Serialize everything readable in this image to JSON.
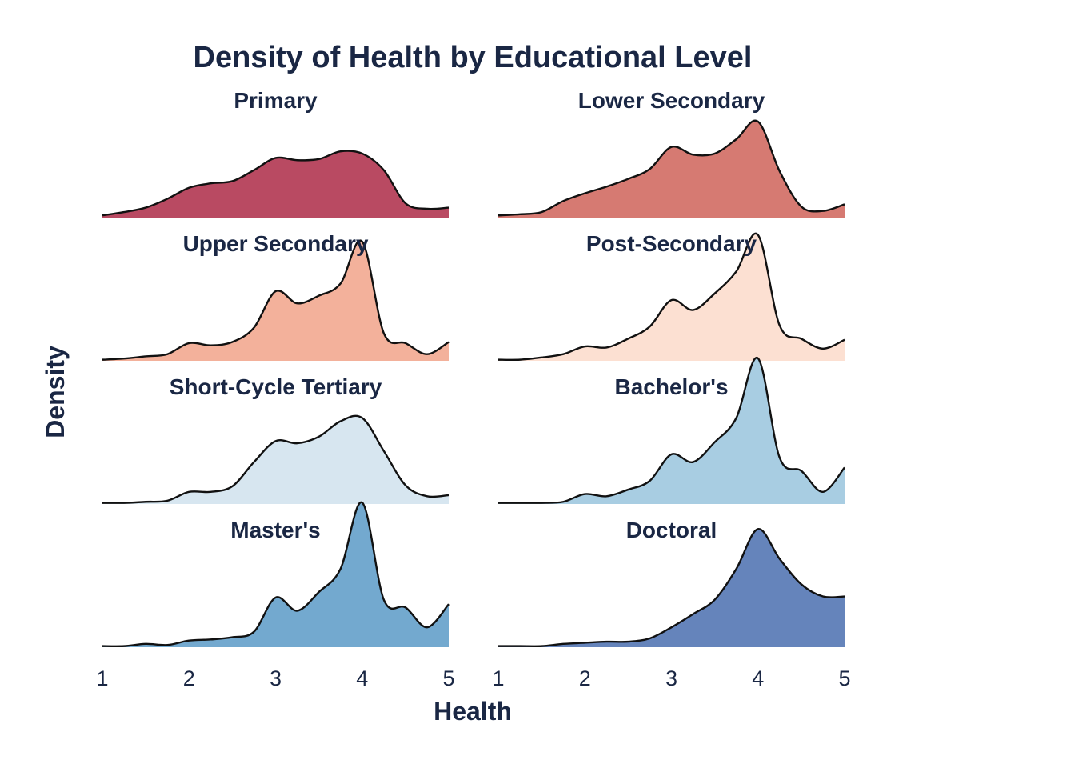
{
  "chart_data": {
    "type": "area",
    "title": "Density of Health by Educational Level",
    "xlabel": "Health",
    "ylabel": "Density",
    "xlim": [
      1,
      5
    ],
    "x_ticks": [
      "1",
      "2",
      "3",
      "4",
      "5"
    ],
    "grid": false,
    "legend": "none",
    "panels": [
      {
        "name": "Primary",
        "color": "#b94a62",
        "x": [
          1.0,
          1.25,
          1.5,
          1.75,
          2.0,
          2.25,
          2.5,
          2.75,
          3.0,
          3.25,
          3.5,
          3.75,
          4.0,
          4.25,
          4.5,
          4.75,
          5.0
        ],
        "density": [
          0.02,
          0.05,
          0.09,
          0.17,
          0.27,
          0.31,
          0.33,
          0.43,
          0.54,
          0.52,
          0.53,
          0.6,
          0.58,
          0.43,
          0.13,
          0.08,
          0.09
        ]
      },
      {
        "name": "Lower Secondary",
        "color": "#d67a72",
        "x": [
          1.0,
          1.25,
          1.5,
          1.75,
          2.0,
          2.25,
          2.5,
          2.75,
          3.0,
          3.25,
          3.5,
          3.75,
          4.0,
          4.25,
          4.5,
          4.75,
          5.0
        ],
        "density": [
          0.02,
          0.03,
          0.05,
          0.15,
          0.22,
          0.28,
          0.35,
          0.44,
          0.64,
          0.57,
          0.58,
          0.71,
          0.87,
          0.42,
          0.1,
          0.06,
          0.12
        ]
      },
      {
        "name": "Upper Secondary",
        "color": "#f3b19b",
        "x": [
          1.0,
          1.25,
          1.5,
          1.75,
          2.0,
          2.25,
          2.5,
          2.75,
          3.0,
          3.25,
          3.5,
          3.75,
          4.0,
          4.25,
          4.5,
          4.75,
          5.0
        ],
        "density": [
          0.01,
          0.02,
          0.04,
          0.06,
          0.16,
          0.14,
          0.17,
          0.3,
          0.63,
          0.52,
          0.59,
          0.7,
          1.08,
          0.25,
          0.16,
          0.06,
          0.17
        ]
      },
      {
        "name": "Post-Secondary",
        "color": "#fce0d2",
        "x": [
          1.0,
          1.25,
          1.5,
          1.75,
          2.0,
          2.25,
          2.5,
          2.75,
          3.0,
          3.25,
          3.5,
          3.75,
          4.0,
          4.25,
          4.5,
          4.75,
          5.0
        ],
        "density": [
          0.01,
          0.01,
          0.03,
          0.06,
          0.13,
          0.12,
          0.2,
          0.31,
          0.55,
          0.46,
          0.61,
          0.81,
          1.14,
          0.32,
          0.2,
          0.11,
          0.19
        ]
      },
      {
        "name": "Short-Cycle Tertiary",
        "color": "#d7e6f0",
        "x": [
          1.0,
          1.25,
          1.5,
          1.75,
          2.0,
          2.25,
          2.5,
          2.75,
          3.0,
          3.25,
          3.5,
          3.75,
          4.0,
          4.25,
          4.5,
          4.75,
          5.0
        ],
        "density": [
          0.01,
          0.01,
          0.02,
          0.03,
          0.11,
          0.11,
          0.16,
          0.38,
          0.57,
          0.55,
          0.61,
          0.75,
          0.78,
          0.48,
          0.17,
          0.07,
          0.08
        ]
      },
      {
        "name": "Bachelor's",
        "color": "#a8cde2",
        "x": [
          1.0,
          1.25,
          1.5,
          1.75,
          2.0,
          2.25,
          2.5,
          2.75,
          3.0,
          3.25,
          3.5,
          3.75,
          4.0,
          4.25,
          4.5,
          4.75,
          5.0
        ],
        "density": [
          0.01,
          0.01,
          0.01,
          0.02,
          0.09,
          0.07,
          0.13,
          0.21,
          0.45,
          0.38,
          0.56,
          0.78,
          1.32,
          0.42,
          0.3,
          0.11,
          0.33
        ]
      },
      {
        "name": "Master's",
        "color": "#73a9cf",
        "x": [
          1.0,
          1.25,
          1.5,
          1.75,
          2.0,
          2.25,
          2.5,
          2.75,
          3.0,
          3.25,
          3.5,
          3.75,
          4.0,
          4.25,
          4.5,
          4.75,
          5.0
        ],
        "density": [
          0.01,
          0.01,
          0.03,
          0.02,
          0.06,
          0.07,
          0.09,
          0.14,
          0.45,
          0.33,
          0.5,
          0.71,
          1.31,
          0.43,
          0.36,
          0.18,
          0.39
        ]
      },
      {
        "name": "Doctoral",
        "color": "#6584bb",
        "x": [
          1.0,
          1.25,
          1.5,
          1.75,
          2.0,
          2.25,
          2.5,
          2.75,
          3.0,
          3.25,
          3.5,
          3.75,
          4.0,
          4.25,
          4.5,
          4.75,
          5.0
        ],
        "density": [
          0.01,
          0.01,
          0.01,
          0.03,
          0.04,
          0.05,
          0.05,
          0.08,
          0.18,
          0.3,
          0.43,
          0.71,
          1.07,
          0.8,
          0.57,
          0.46,
          0.46
        ]
      }
    ]
  }
}
